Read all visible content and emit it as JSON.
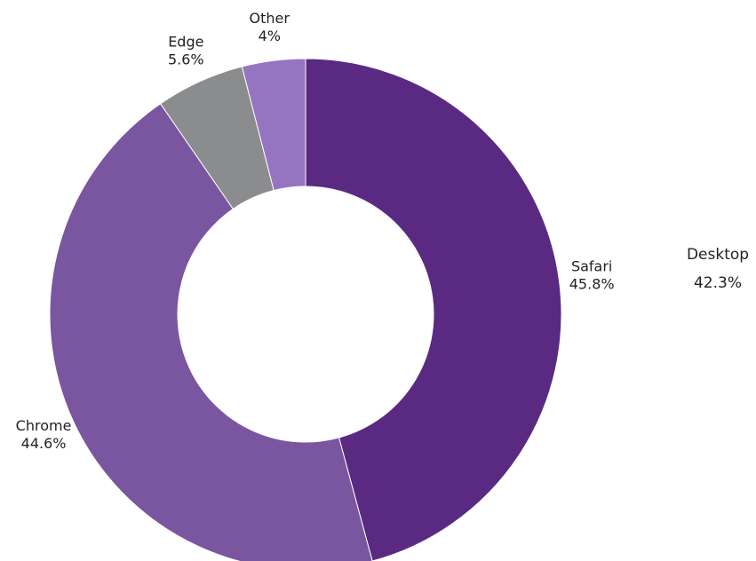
{
  "chart_data": {
    "type": "donut",
    "categories": [
      "Safari",
      "Chrome",
      "Edge",
      "Other"
    ],
    "values": [
      45.8,
      44.6,
      5.6,
      4
    ],
    "value_labels": [
      "45.8%",
      "44.6%",
      "5.6%",
      "4%"
    ],
    "colors": [
      "#5a2a82",
      "#7a55a0",
      "#8a8c8e",
      "#9575c0"
    ],
    "annotation": {
      "text": "Desktop",
      "value_label": "42.3%"
    }
  }
}
